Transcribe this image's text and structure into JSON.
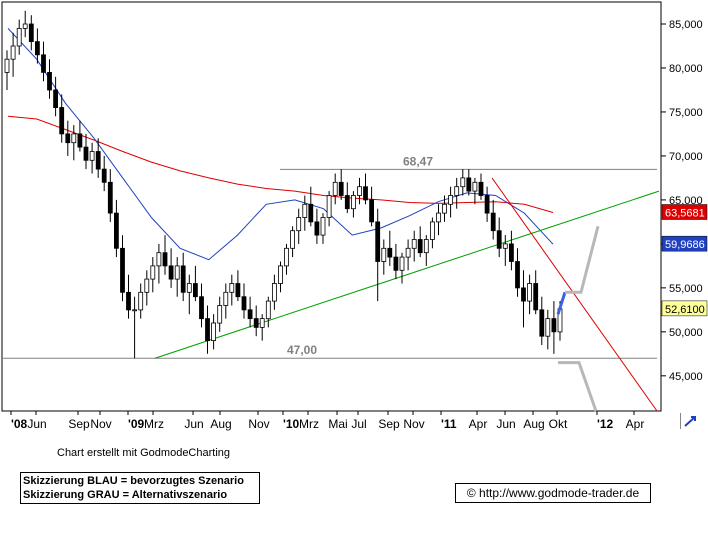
{
  "chart_data": {
    "type": "candlestick",
    "title": "",
    "xlabel": "",
    "ylabel": "",
    "ylim": [
      41000,
      87500
    ],
    "y_ticks": [
      45000,
      50000,
      55000,
      60000,
      65000,
      70000,
      75000,
      80000,
      85000
    ],
    "y_tick_labels": [
      "45,000",
      "50,000",
      "55,000",
      "60,000",
      "65,000",
      "70,000",
      "75,000",
      "80,000",
      "85,000"
    ],
    "x_tick_labels": [
      "'08",
      "Jun",
      "Sep",
      "Nov",
      "'09",
      "Mrz",
      "Jun",
      "Aug",
      "Nov",
      "'10",
      "Mrz",
      "Mai",
      "Jul",
      "Sep",
      "Nov",
      "'11",
      "Apr",
      "Jun",
      "Aug",
      "Okt",
      "'12",
      "Apr"
    ],
    "x_bold_ticks": [
      "'08",
      "'09",
      "'10",
      "'11",
      "'12"
    ],
    "grid": false,
    "price_series_color": "#000000",
    "horizontal_levels": [
      {
        "label": "68,47",
        "value": 68470,
        "color": "#808080"
      },
      {
        "label": "47,00",
        "value": 47000,
        "color": "#808080"
      }
    ],
    "price_tags": [
      {
        "label": "63,5681",
        "value": 63568,
        "color": "#dd0000"
      },
      {
        "label": "59,9686",
        "value": 59969,
        "color": "#2040c0"
      },
      {
        "label": "52,6100",
        "value": 52610,
        "color": "#ffff99"
      }
    ],
    "moving_averages": [
      {
        "color": "#dd0000",
        "points": [
          [
            "'08",
            74500
          ],
          [
            "Jun",
            74200
          ],
          [
            "Sep",
            73000
          ],
          [
            "Nov",
            71800
          ],
          [
            "'09",
            70500
          ],
          [
            "Mrz",
            69300
          ],
          [
            "Jun",
            68300
          ],
          [
            "Aug",
            67500
          ],
          [
            "Nov",
            66800
          ],
          [
            "'10",
            66300
          ],
          [
            "Mrz",
            66000
          ],
          [
            "Mai",
            65500
          ],
          [
            "Jul",
            65200
          ],
          [
            "Sep",
            65000
          ],
          [
            "Nov",
            64700
          ],
          [
            "'11",
            64600
          ],
          [
            "Apr",
            64700
          ],
          [
            "Jun",
            64800
          ],
          [
            "Aug",
            64500
          ],
          [
            "Okt",
            63568
          ]
        ]
      },
      {
        "color": "#2040c0",
        "points": [
          [
            "'08",
            84500
          ],
          [
            "Jun",
            81000
          ],
          [
            "Sep",
            76000
          ],
          [
            "Nov",
            72000
          ],
          [
            "'09",
            67500
          ],
          [
            "Mrz",
            63000
          ],
          [
            "Jun",
            59500
          ],
          [
            "Aug",
            58200
          ],
          [
            "Nov",
            61000
          ],
          [
            "'10",
            64500
          ],
          [
            "Mrz",
            65000
          ],
          [
            "Mai",
            64000
          ],
          [
            "Jul",
            61000
          ],
          [
            "Sep",
            61800
          ],
          [
            "Nov",
            63200
          ],
          [
            "'11",
            64800
          ],
          [
            "Apr",
            65800
          ],
          [
            "Jun",
            65500
          ],
          [
            "Aug",
            63500
          ],
          [
            "Okt",
            59969
          ]
        ]
      }
    ],
    "trendlines": [
      {
        "color": "#00a000",
        "from": [
          "Mrz",
          47000
        ],
        "to": [
          "Apr",
          66000
        ]
      },
      {
        "color": "#dd0000",
        "from": [
          "Apr",
          67500
        ],
        "to": [
          "Apr",
          41000
        ]
      }
    ],
    "scenario_paths": [
      {
        "name": "BLAU",
        "color": "#4060e0",
        "points": [
          [
            "Okt",
            52000
          ],
          [
            "Okt",
            54500
          ]
        ]
      },
      {
        "name": "GRAU",
        "color": "#b8b8b8",
        "points": [
          [
            "Okt",
            54500
          ],
          [
            "Okt",
            54500
          ],
          [
            "Okt",
            62000
          ]
        ]
      },
      {
        "name": "GRAU",
        "color": "#b8b8b8",
        "points": [
          [
            "Okt",
            46500
          ],
          [
            "Okt",
            46500
          ],
          [
            "Okt",
            41000
          ]
        ]
      }
    ],
    "candles": [
      [
        79500,
        82000,
        77500,
        81000
      ],
      [
        81000,
        84000,
        79000,
        82500
      ],
      [
        82500,
        85500,
        81500,
        84500
      ],
      [
        84500,
        86500,
        83500,
        85000
      ],
      [
        85000,
        86000,
        82000,
        83000
      ],
      [
        83000,
        84500,
        80500,
        81500
      ],
      [
        81500,
        83000,
        78500,
        79500
      ],
      [
        79500,
        81000,
        76500,
        77500
      ],
      [
        77500,
        79000,
        74500,
        75500
      ],
      [
        75500,
        77000,
        71500,
        72500
      ],
      [
        72500,
        74000,
        70000,
        71500
      ],
      [
        71500,
        73500,
        69500,
        72500
      ],
      [
        72500,
        74000,
        70500,
        71000
      ],
      [
        71000,
        72500,
        68500,
        69500
      ],
      [
        69500,
        71500,
        68000,
        70500
      ],
      [
        70500,
        72000,
        67500,
        68500
      ],
      [
        68500,
        70000,
        66000,
        67000
      ],
      [
        67000,
        68500,
        62500,
        63500
      ],
      [
        63500,
        65000,
        58500,
        59500
      ],
      [
        59500,
        61000,
        53500,
        54500
      ],
      [
        54500,
        56500,
        51500,
        52500
      ],
      [
        52500,
        54000,
        47000,
        52500
      ],
      [
        52500,
        55500,
        51500,
        54500
      ],
      [
        54500,
        57000,
        53000,
        56000
      ],
      [
        56000,
        58500,
        54500,
        57500
      ],
      [
        57500,
        60000,
        55500,
        59000
      ],
      [
        59000,
        61000,
        56500,
        57500
      ],
      [
        57500,
        59500,
        55000,
        56000
      ],
      [
        56000,
        58500,
        54000,
        57500
      ],
      [
        57500,
        59000,
        53500,
        54500
      ],
      [
        54500,
        56500,
        52000,
        55500
      ],
      [
        55500,
        57500,
        53500,
        54000
      ],
      [
        54000,
        55500,
        50500,
        51500
      ],
      [
        51500,
        53000,
        47500,
        49000
      ],
      [
        49000,
        52000,
        48000,
        51000
      ],
      [
        51000,
        54000,
        50000,
        53000
      ],
      [
        53000,
        55500,
        51500,
        54500
      ],
      [
        54500,
        56500,
        53000,
        55500
      ],
      [
        55500,
        57000,
        53500,
        54000
      ],
      [
        54000,
        55500,
        51500,
        52500
      ],
      [
        52500,
        54000,
        50500,
        51500
      ],
      [
        51500,
        53000,
        49500,
        50500
      ],
      [
        50500,
        52000,
        49000,
        51500
      ],
      [
        51500,
        54000,
        50500,
        53500
      ],
      [
        53500,
        56500,
        52500,
        55500
      ],
      [
        55500,
        58000,
        54500,
        57500
      ],
      [
        57500,
        60000,
        56500,
        59500
      ],
      [
        59500,
        62000,
        58500,
        61500
      ],
      [
        61500,
        64000,
        60000,
        63000
      ],
      [
        63000,
        65500,
        61500,
        64500
      ],
      [
        64500,
        66500,
        62000,
        62500
      ],
      [
        62500,
        64000,
        60000,
        61000
      ],
      [
        61000,
        63500,
        60000,
        63000
      ],
      [
        63000,
        66000,
        62000,
        65500
      ],
      [
        65500,
        68000,
        64500,
        67000
      ],
      [
        67000,
        68500,
        65000,
        65500
      ],
      [
        65500,
        67000,
        63500,
        64000
      ],
      [
        64000,
        66000,
        63000,
        65500
      ],
      [
        65500,
        67500,
        64500,
        66500
      ],
      [
        66500,
        68000,
        64500,
        65000
      ],
      [
        65000,
        66500,
        62000,
        62500
      ],
      [
        62500,
        64000,
        53500,
        58000
      ],
      [
        58000,
        60500,
        56500,
        59500
      ],
      [
        59500,
        61500,
        57500,
        58500
      ],
      [
        58500,
        60000,
        56000,
        57000
      ],
      [
        57000,
        59000,
        55500,
        58500
      ],
      [
        58500,
        60500,
        57000,
        59500
      ],
      [
        59500,
        61500,
        58000,
        60500
      ],
      [
        60500,
        62000,
        58500,
        59000
      ],
      [
        59000,
        61000,
        57500,
        60500
      ],
      [
        60500,
        63000,
        59500,
        62500
      ],
      [
        62500,
        64500,
        61000,
        63500
      ],
      [
        63500,
        65500,
        62500,
        64500
      ],
      [
        64500,
        66500,
        63000,
        65500
      ],
      [
        65500,
        67500,
        64000,
        66500
      ],
      [
        66500,
        68500,
        65500,
        67500
      ],
      [
        67500,
        68500,
        65500,
        66000
      ],
      [
        66000,
        67500,
        64500,
        67000
      ],
      [
        67000,
        68000,
        65000,
        65500
      ],
      [
        65500,
        66500,
        62500,
        63500
      ],
      [
        63500,
        65000,
        60500,
        61500
      ],
      [
        61500,
        63000,
        58500,
        59500
      ],
      [
        59500,
        61000,
        57500,
        60000
      ],
      [
        60000,
        61500,
        57000,
        58000
      ],
      [
        58000,
        59500,
        54000,
        55000
      ],
      [
        55000,
        57000,
        50500,
        53500
      ],
      [
        53500,
        56500,
        52000,
        55500
      ],
      [
        55500,
        57000,
        52000,
        52500
      ],
      [
        52500,
        54000,
        48500,
        49500
      ],
      [
        49500,
        52500,
        48000,
        51500
      ],
      [
        51500,
        53500,
        47500,
        50000
      ],
      [
        50000,
        53500,
        49000,
        52610
      ]
    ]
  },
  "footer": {
    "credit": "Chart erstellt mit GodmodeCharting",
    "legend_lines": [
      "Skizzierung BLAU = bevorzugtes Szenario",
      "Skizzierung GRAU = Alternativszenario"
    ],
    "copyright": "© http://www.godmode-trader.de"
  }
}
